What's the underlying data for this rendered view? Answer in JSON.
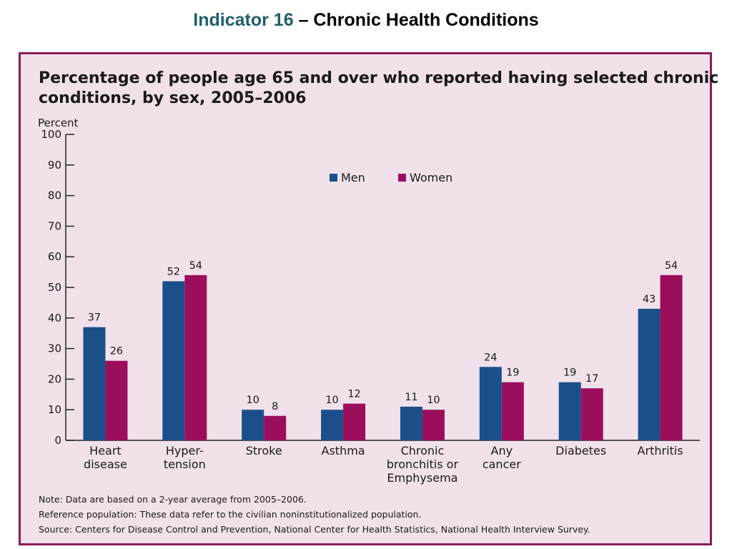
{
  "slide": {
    "title_accent": "Indicator 16",
    "title_rest": " – Chronic Health Conditions"
  },
  "chart_data": {
    "type": "bar",
    "title_line1": "Percentage of people age 65 and over who reported having selected chronic",
    "title_line2": "conditions, by sex, 2005–2006",
    "ylabel": "Percent",
    "ylim": [
      0,
      100
    ],
    "yticks": [
      "0",
      "10",
      "20",
      "30",
      "40",
      "50",
      "60",
      "70",
      "80",
      "90",
      "100"
    ],
    "categories": [
      [
        "Heart",
        "disease"
      ],
      [
        "Hyper-",
        "tension"
      ],
      [
        "Stroke"
      ],
      [
        "Asthma"
      ],
      [
        "Chronic",
        "bronchitis or",
        "Emphysema"
      ],
      [
        "Any",
        "cancer"
      ],
      [
        "Diabetes"
      ],
      [
        "Arthritis"
      ]
    ],
    "series": [
      {
        "name": "Men",
        "color": "#1b4f8a",
        "values": [
          37,
          52,
          10,
          10,
          11,
          24,
          19,
          43
        ]
      },
      {
        "name": "Women",
        "color": "#9b0e5c",
        "values": [
          26,
          54,
          8,
          12,
          10,
          19,
          17,
          54
        ]
      }
    ],
    "legend_position": "top-center",
    "grid": false
  },
  "notes": {
    "note": "Note: Data are based on a 2-year average from 2005–2006.",
    "reference": "Reference population: These data refer to the civilian noninstitutionalized population.",
    "source": "Source: Centers for Disease Control and Prevention, National Center for Health Statistics, National Health Interview Survey."
  }
}
